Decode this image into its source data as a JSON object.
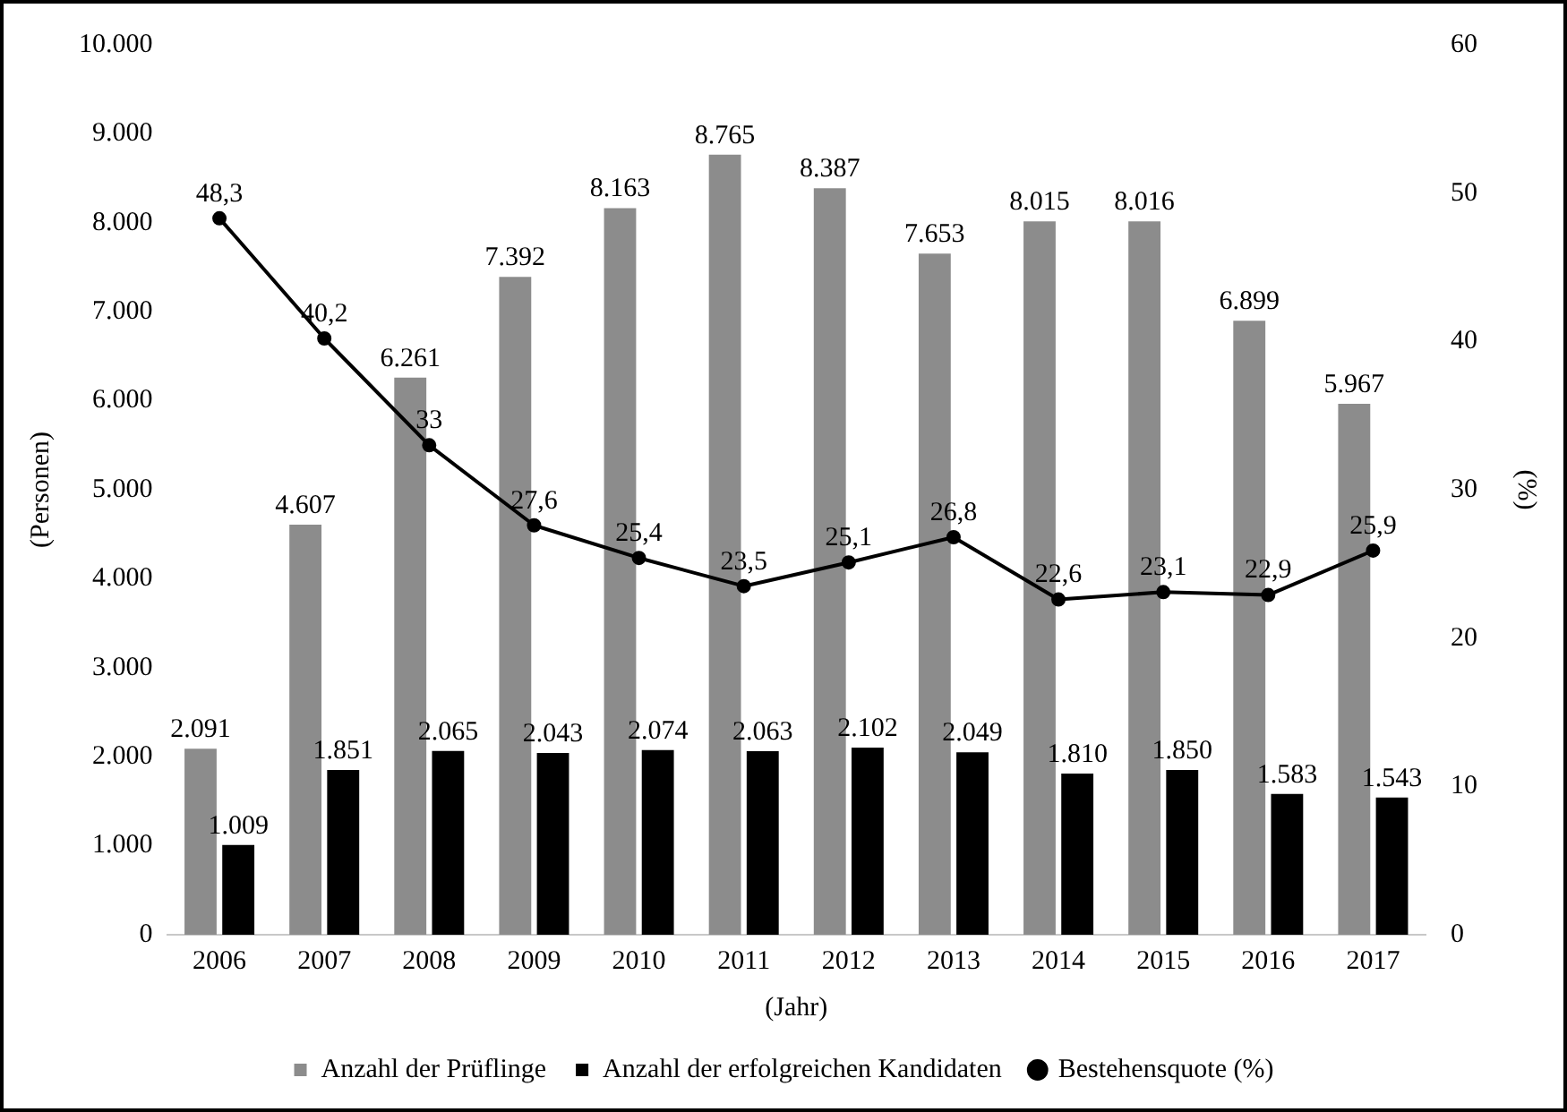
{
  "chart_data": {
    "type": "bar",
    "xlabel": "(Jahr)",
    "ylabel": "(Personen)",
    "y2label": "(%)",
    "categories": [
      "2006",
      "2007",
      "2008",
      "2009",
      "2010",
      "2011",
      "2012",
      "2013",
      "2014",
      "2015",
      "2016",
      "2017"
    ],
    "series": [
      {
        "name": "Anzahl der Prüflinge",
        "color": "#8c8c8c",
        "values": [
          2091,
          4607,
          6261,
          7392,
          8163,
          8765,
          8387,
          7653,
          8015,
          8016,
          6899,
          5967
        ],
        "value_labels": [
          "2.091",
          "4.607",
          "6.261",
          "7.392",
          "8.163",
          "8.765",
          "8.387",
          "7.653",
          "8.015",
          "8.016",
          "6.899",
          "5.967"
        ]
      },
      {
        "name": "Anzahl der erfolgreichen Kandidaten",
        "color": "#000000",
        "values": [
          1009,
          1851,
          2065,
          2043,
          2074,
          2063,
          2102,
          2049,
          1810,
          1850,
          1583,
          1543
        ],
        "value_labels": [
          "1.009",
          "1.851",
          "2.065",
          "2.043",
          "2.074",
          "2.063",
          "2.102",
          "2.049",
          "1.810",
          "1.850",
          "1.583",
          "1.543"
        ]
      },
      {
        "name": "Bestehensquote (%)",
        "type": "line",
        "axis": "y2",
        "color": "#000000",
        "values": [
          48.3,
          40.2,
          33,
          27.6,
          25.4,
          23.5,
          25.1,
          26.8,
          22.6,
          23.1,
          22.9,
          25.9
        ],
        "value_labels": [
          "48,3",
          "40,2",
          "33",
          "27,6",
          "25,4",
          "23,5",
          "25,1",
          "26,8",
          "22,6",
          "23,1",
          "22,9",
          "25,9"
        ]
      }
    ],
    "ylim": [
      0,
      10000
    ],
    "yticks": [
      {
        "value": 0,
        "label": "0"
      },
      {
        "value": 1000,
        "label": "1.000"
      },
      {
        "value": 2000,
        "label": "2.000"
      },
      {
        "value": 3000,
        "label": "3.000"
      },
      {
        "value": 4000,
        "label": "4.000"
      },
      {
        "value": 5000,
        "label": "5.000"
      },
      {
        "value": 6000,
        "label": "6.000"
      },
      {
        "value": 7000,
        "label": "7.000"
      },
      {
        "value": 8000,
        "label": "8.000"
      },
      {
        "value": 9000,
        "label": "9.000"
      },
      {
        "value": 10000,
        "label": "10.000"
      }
    ],
    "y2lim": [
      0,
      60
    ],
    "y2ticks": [
      0,
      10,
      20,
      30,
      40,
      50,
      60
    ],
    "legend": "bottom",
    "marker": "circle",
    "line_style": "solid"
  }
}
